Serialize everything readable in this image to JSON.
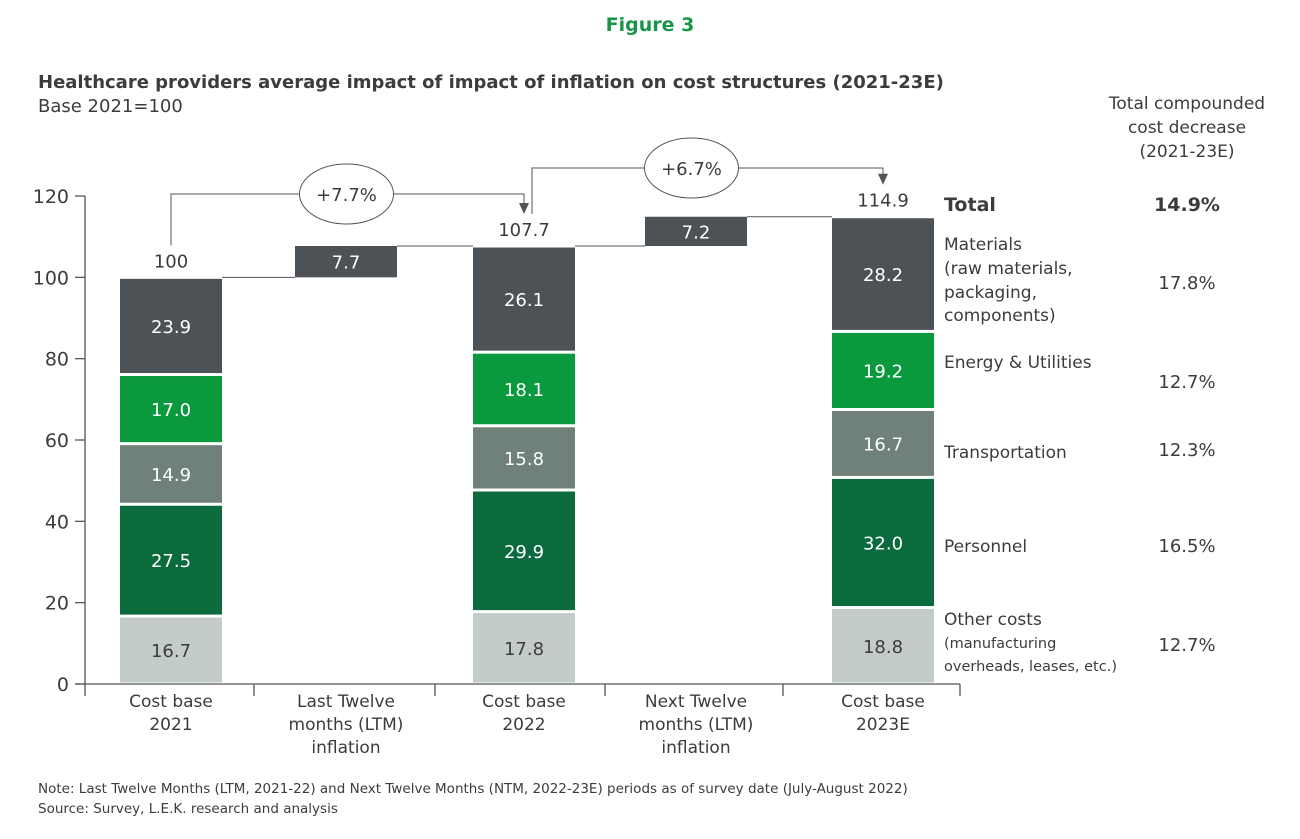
{
  "figure_label": "Figure 3",
  "chart_data": {
    "type": "bar",
    "subtype": "stacked-waterfall",
    "title": "Healthcare providers average impact of impact of inflation on cost structures (2021-23E)",
    "subtitle": "Base 2021=100",
    "ylim": [
      0,
      120
    ],
    "yticks": [
      0,
      20,
      40,
      60,
      80,
      100,
      120
    ],
    "grid": false,
    "categories": [
      [
        "Cost base",
        "2021"
      ],
      [
        "Last Twelve",
        "months (LTM)",
        "inflation"
      ],
      [
        "Cost base",
        "2022"
      ],
      [
        "Next Twelve",
        "months (LTM)",
        "inflation"
      ],
      [
        "Cost base",
        "2023E"
      ]
    ],
    "series": [
      {
        "name": "Other costs",
        "color": "#c4cccb",
        "text_color": "#3c3c3c",
        "values": [
          16.7,
          null,
          17.8,
          null,
          18.8
        ]
      },
      {
        "name": "Personnel",
        "color": "#0b6b3d",
        "text_color": "#ffffff",
        "values": [
          27.5,
          null,
          29.9,
          null,
          32.0
        ]
      },
      {
        "name": "Transportation",
        "color": "#6f8179",
        "text_color": "#ffffff",
        "values": [
          14.9,
          null,
          15.8,
          null,
          16.7
        ]
      },
      {
        "name": "Energy & Utilities",
        "color": "#0a9a3d",
        "text_color": "#ffffff",
        "values": [
          17.0,
          null,
          18.1,
          null,
          19.2
        ]
      },
      {
        "name": "Materials",
        "color": "#4d5257",
        "text_color": "#ffffff",
        "values": [
          23.9,
          null,
          26.1,
          null,
          28.2
        ]
      }
    ],
    "increments": [
      {
        "category_index": 1,
        "from": 100,
        "value": 7.7,
        "label": "7.7"
      },
      {
        "category_index": 3,
        "from": 107.7,
        "value": 7.2,
        "label": "7.2"
      }
    ],
    "totals": [
      "100",
      null,
      "107.7",
      null,
      "114.9"
    ],
    "growth_callouts": [
      {
        "from_index": 0,
        "to_index": 2,
        "label": "+7.7%"
      },
      {
        "from_index": 2,
        "to_index": 4,
        "label": "+6.7%"
      }
    ],
    "right_panel": {
      "header": [
        "Total compounded",
        "cost decrease",
        "(2021-23E)"
      ],
      "rows": [
        {
          "label": [
            "Total"
          ],
          "value": "14.9%",
          "bold": true
        },
        {
          "label": [
            "Materials",
            "(raw materials,",
            "packaging,",
            "components)"
          ],
          "value": "17.8%"
        },
        {
          "label": [
            "Energy & Utilities"
          ],
          "value": "12.7%"
        },
        {
          "label": [
            "Transportation"
          ],
          "value": "12.3%"
        },
        {
          "label": [
            "Personnel"
          ],
          "value": "16.5%"
        },
        {
          "label": [
            "Other costs",
            "(manufacturing",
            "overheads, leases, etc.)"
          ],
          "value": "12.7%"
        }
      ]
    },
    "note": "Note: Last Twelve Months (LTM, 2021-22) and Next Twelve Months (NTM, 2022-23E) periods as of survey date (July-August 2022)",
    "source": "Source: Survey, L.E.K. research and analysis"
  },
  "colors": {
    "title_green": "#17964a",
    "text": "#3c3c3c",
    "axis": "#555555"
  }
}
